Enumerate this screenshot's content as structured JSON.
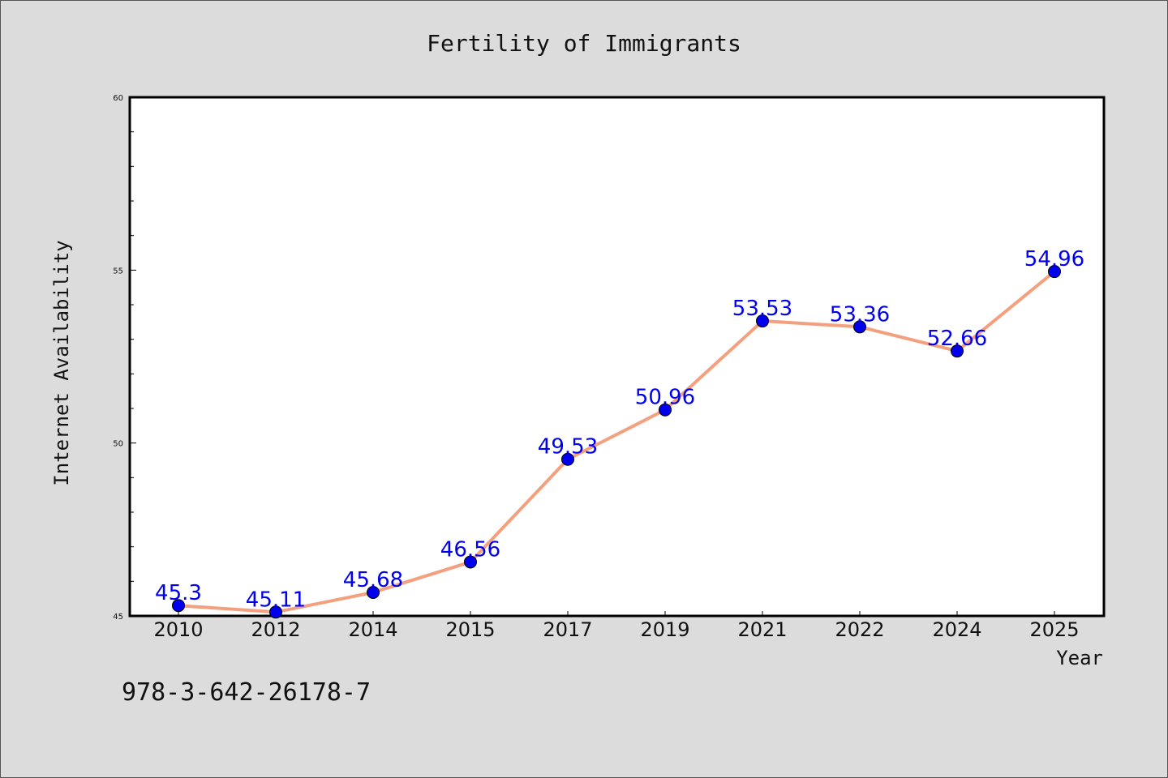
{
  "chart_data": {
    "type": "line",
    "title": "Fertility of Immigrants",
    "xlabel": "Year",
    "ylabel": "Internet Availability",
    "categories": [
      "2010",
      "2012",
      "2014",
      "2015",
      "2017",
      "2019",
      "2021",
      "2022",
      "2024",
      "2025"
    ],
    "series": [
      {
        "values": [
          45.3,
          45.11,
          45.68,
          46.56,
          49.53,
          50.96,
          53.53,
          53.36,
          52.66,
          54.96
        ],
        "data_labels": [
          "45.3",
          "45.11",
          "45.68",
          "46.56",
          "49.53",
          "50.96",
          "53.53",
          "53.36",
          "52.66",
          "54.96"
        ],
        "line_color": "#f4a07f",
        "marker_color": "#0000ee",
        "label_color": "#0000ee"
      }
    ],
    "ylim": [
      45,
      60
    ],
    "yticks": [
      "45",
      "50",
      "55",
      "60"
    ],
    "grid": false,
    "legend": "none"
  },
  "annotation": "978-3-642-26178-7",
  "colors": {
    "background": "#dcdcdc",
    "plot_background": "#ffffff",
    "axis": "#000000"
  }
}
